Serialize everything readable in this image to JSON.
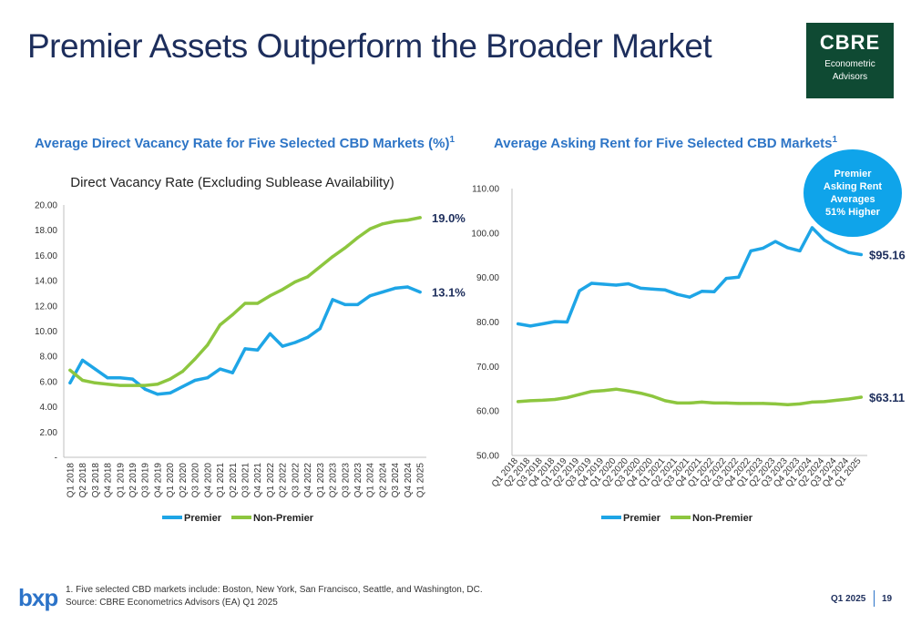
{
  "page": {
    "title": "Premier Assets Outperform the Broader Market",
    "logo": {
      "brand": "CBRE",
      "line1": "Econometric",
      "line2": "Advisors"
    },
    "callout": [
      "Premier",
      "Asking Rent",
      "Averages",
      "51% Higher"
    ],
    "footnote_1": "1.    Five selected CBD markets include: Boston, New York, San Francisco, Seattle, and Washington, DC.",
    "footnote_2": "Source: CBRE Econometrics Advisors (EA) Q1 2025",
    "company": "bxp",
    "quarter": "Q1 2025",
    "page_number": "19",
    "colors": {
      "premier": "#1ea5e6",
      "non_premier": "#8dc63f",
      "title": "#1d2e5c",
      "accent": "#2e75c6"
    }
  },
  "chart_data": [
    {
      "type": "line",
      "heading": "Average Direct Vacancy Rate for Five Selected CBD Markets (%)",
      "heading_sup": "1",
      "title": "Direct Vacancy Rate (Excluding Sublease Availability)",
      "categories": [
        "Q1 2018",
        "Q2 2018",
        "Q3 2018",
        "Q4 2018",
        "Q1 2019",
        "Q2 2019",
        "Q3 2019",
        "Q4 2019",
        "Q1 2020",
        "Q2 2020",
        "Q3 2020",
        "Q4 2020",
        "Q1 2021",
        "Q2 2021",
        "Q3 2021",
        "Q4 2021",
        "Q1 2022",
        "Q2 2022",
        "Q3 2022",
        "Q4 2022",
        "Q1 2023",
        "Q2 2023",
        "Q3 2023",
        "Q4 2023",
        "Q1 2024",
        "Q2 2024",
        "Q3 2024",
        "Q4 2024",
        "Q1 2025"
      ],
      "series": [
        {
          "name": "Premier",
          "values": [
            5.9,
            7.7,
            7.0,
            6.3,
            6.3,
            6.2,
            5.4,
            5.0,
            5.1,
            5.6,
            6.1,
            6.3,
            7.0,
            6.7,
            8.6,
            8.5,
            9.8,
            8.8,
            9.1,
            9.5,
            10.2,
            12.5,
            12.1,
            12.1,
            12.8,
            13.1,
            13.4,
            13.5,
            13.1
          ]
        },
        {
          "name": "Non-Premier",
          "values": [
            6.9,
            6.1,
            5.9,
            5.8,
            5.7,
            5.7,
            5.7,
            5.8,
            6.2,
            6.8,
            7.8,
            8.9,
            10.5,
            11.3,
            12.2,
            12.2,
            12.8,
            13.3,
            13.9,
            14.3,
            15.1,
            15.9,
            16.6,
            17.4,
            18.1,
            18.5,
            18.7,
            18.8,
            19.0
          ]
        }
      ],
      "end_labels": [
        "13.1%",
        "19.0%"
      ],
      "ylim": [
        0,
        20
      ],
      "yticks": [
        "-",
        "2.00",
        "4.00",
        "6.00",
        "8.00",
        "10.00",
        "12.00",
        "14.00",
        "16.00",
        "18.00",
        "20.00"
      ],
      "grid": false,
      "legend": "bottom"
    },
    {
      "type": "line",
      "heading": "Average Asking Rent for Five Selected CBD Markets",
      "heading_sup": "1",
      "categories": [
        "Q1 2018",
        "Q2 2018",
        "Q3 2018",
        "Q4 2018",
        "Q1 2019",
        "Q2 2019",
        "Q3 2019",
        "Q4 2019",
        "Q1 2020",
        "Q2 2020",
        "Q3 2020",
        "Q4 2020",
        "Q1 2021",
        "Q2 2021",
        "Q3 2021",
        "Q4 2021",
        "Q1 2022",
        "Q2 2022",
        "Q3 2022",
        "Q4 2022",
        "Q1 2023",
        "Q2 2023",
        "Q3 2023",
        "Q4 2023",
        "Q1 2024",
        "Q2 2024",
        "Q3 2024",
        "Q4 2024",
        "Q1 2025"
      ],
      "series": [
        {
          "name": "Premier",
          "values": [
            79.6,
            79.1,
            79.6,
            80.1,
            80.0,
            87.0,
            88.7,
            88.5,
            88.3,
            88.6,
            87.6,
            87.4,
            87.2,
            86.2,
            85.6,
            86.9,
            86.8,
            89.8,
            90.1,
            96.0,
            96.6,
            98.1,
            96.7,
            96.0,
            101.2,
            98.4,
            96.8,
            95.6,
            95.16
          ]
        },
        {
          "name": "Non-Premier",
          "values": [
            62.1,
            62.3,
            62.4,
            62.6,
            63.0,
            63.7,
            64.4,
            64.6,
            64.9,
            64.5,
            64.0,
            63.3,
            62.3,
            61.8,
            61.8,
            62.0,
            61.8,
            61.8,
            61.7,
            61.7,
            61.7,
            61.6,
            61.4,
            61.6,
            62.0,
            62.1,
            62.4,
            62.7,
            63.11
          ]
        }
      ],
      "end_labels": [
        "$95.16",
        "$63.11"
      ],
      "ylim": [
        50,
        110
      ],
      "yticks": [
        "50.00",
        "60.00",
        "70.00",
        "80.00",
        "90.00",
        "100.00",
        "110.00"
      ],
      "grid": false,
      "legend": "bottom"
    }
  ]
}
